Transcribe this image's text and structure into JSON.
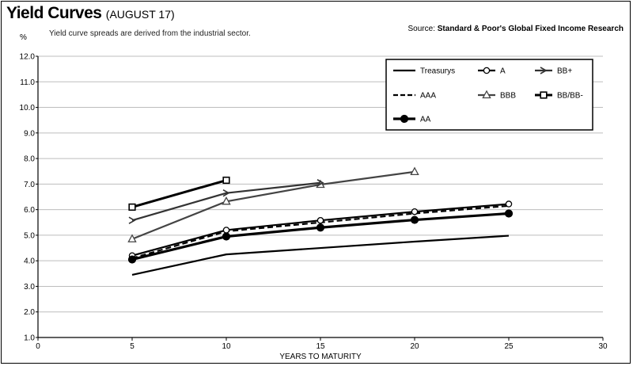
{
  "header": {
    "title": "Yield Curves",
    "title_sub": "(AUGUST 17)",
    "unit": "%",
    "note": "Yield curve spreads are derived from the industrial sector.",
    "source_prefix": "Source:",
    "source_name": "Standard & Poor's Global Fixed Income Research"
  },
  "chart_data": {
    "type": "line",
    "title": "Yield Curves",
    "xlabel": "YEARS TO MATURITY",
    "ylabel": "%",
    "xlim": [
      0,
      30
    ],
    "ylim": [
      1.0,
      12.0
    ],
    "xticks": [
      0,
      5,
      10,
      15,
      20,
      25,
      30
    ],
    "yticks": [
      1.0,
      2.0,
      3.0,
      4.0,
      5.0,
      6.0,
      7.0,
      8.0,
      9.0,
      10.0,
      11.0,
      12.0
    ],
    "grid": "horizontal",
    "legend_position": "top-right",
    "series": [
      {
        "name": "Treasurys",
        "marker": "none",
        "dash": "solid",
        "width": 2.2,
        "x": [
          5,
          10,
          15,
          20,
          25
        ],
        "values": [
          3.45,
          4.25,
          4.5,
          4.75,
          4.98
        ]
      },
      {
        "name": "AAA",
        "marker": "none",
        "dash": "dashed",
        "width": 2.2,
        "x": [
          5,
          10,
          15,
          20,
          25
        ],
        "values": [
          4.1,
          5.15,
          5.5,
          5.85,
          6.15
        ]
      },
      {
        "name": "AA",
        "marker": "filled-circle",
        "dash": "solid",
        "width": 3.2,
        "x": [
          5,
          10,
          15,
          20,
          25
        ],
        "values": [
          4.05,
          4.95,
          5.3,
          5.6,
          5.85
        ]
      },
      {
        "name": "A",
        "marker": "open-circle",
        "dash": "solid",
        "width": 2.2,
        "x": [
          5,
          10,
          15,
          20,
          25
        ],
        "values": [
          4.2,
          5.2,
          5.58,
          5.92,
          6.22
        ]
      },
      {
        "name": "BBB",
        "marker": "open-triangle",
        "dash": "solid",
        "width": 2.2,
        "color": "#444444",
        "x": [
          5,
          10,
          15,
          20
        ],
        "values": [
          4.85,
          6.32,
          6.98,
          7.48
        ]
      },
      {
        "name": "BB+",
        "marker": "open-arrow",
        "dash": "solid",
        "width": 2.2,
        "color": "#333333",
        "x": [
          5,
          10,
          15
        ],
        "values": [
          5.58,
          6.65,
          7.05
        ]
      },
      {
        "name": "BB/BB-",
        "marker": "open-square",
        "dash": "solid",
        "width": 3.0,
        "x": [
          5,
          10
        ],
        "values": [
          6.1,
          7.15
        ]
      }
    ]
  }
}
